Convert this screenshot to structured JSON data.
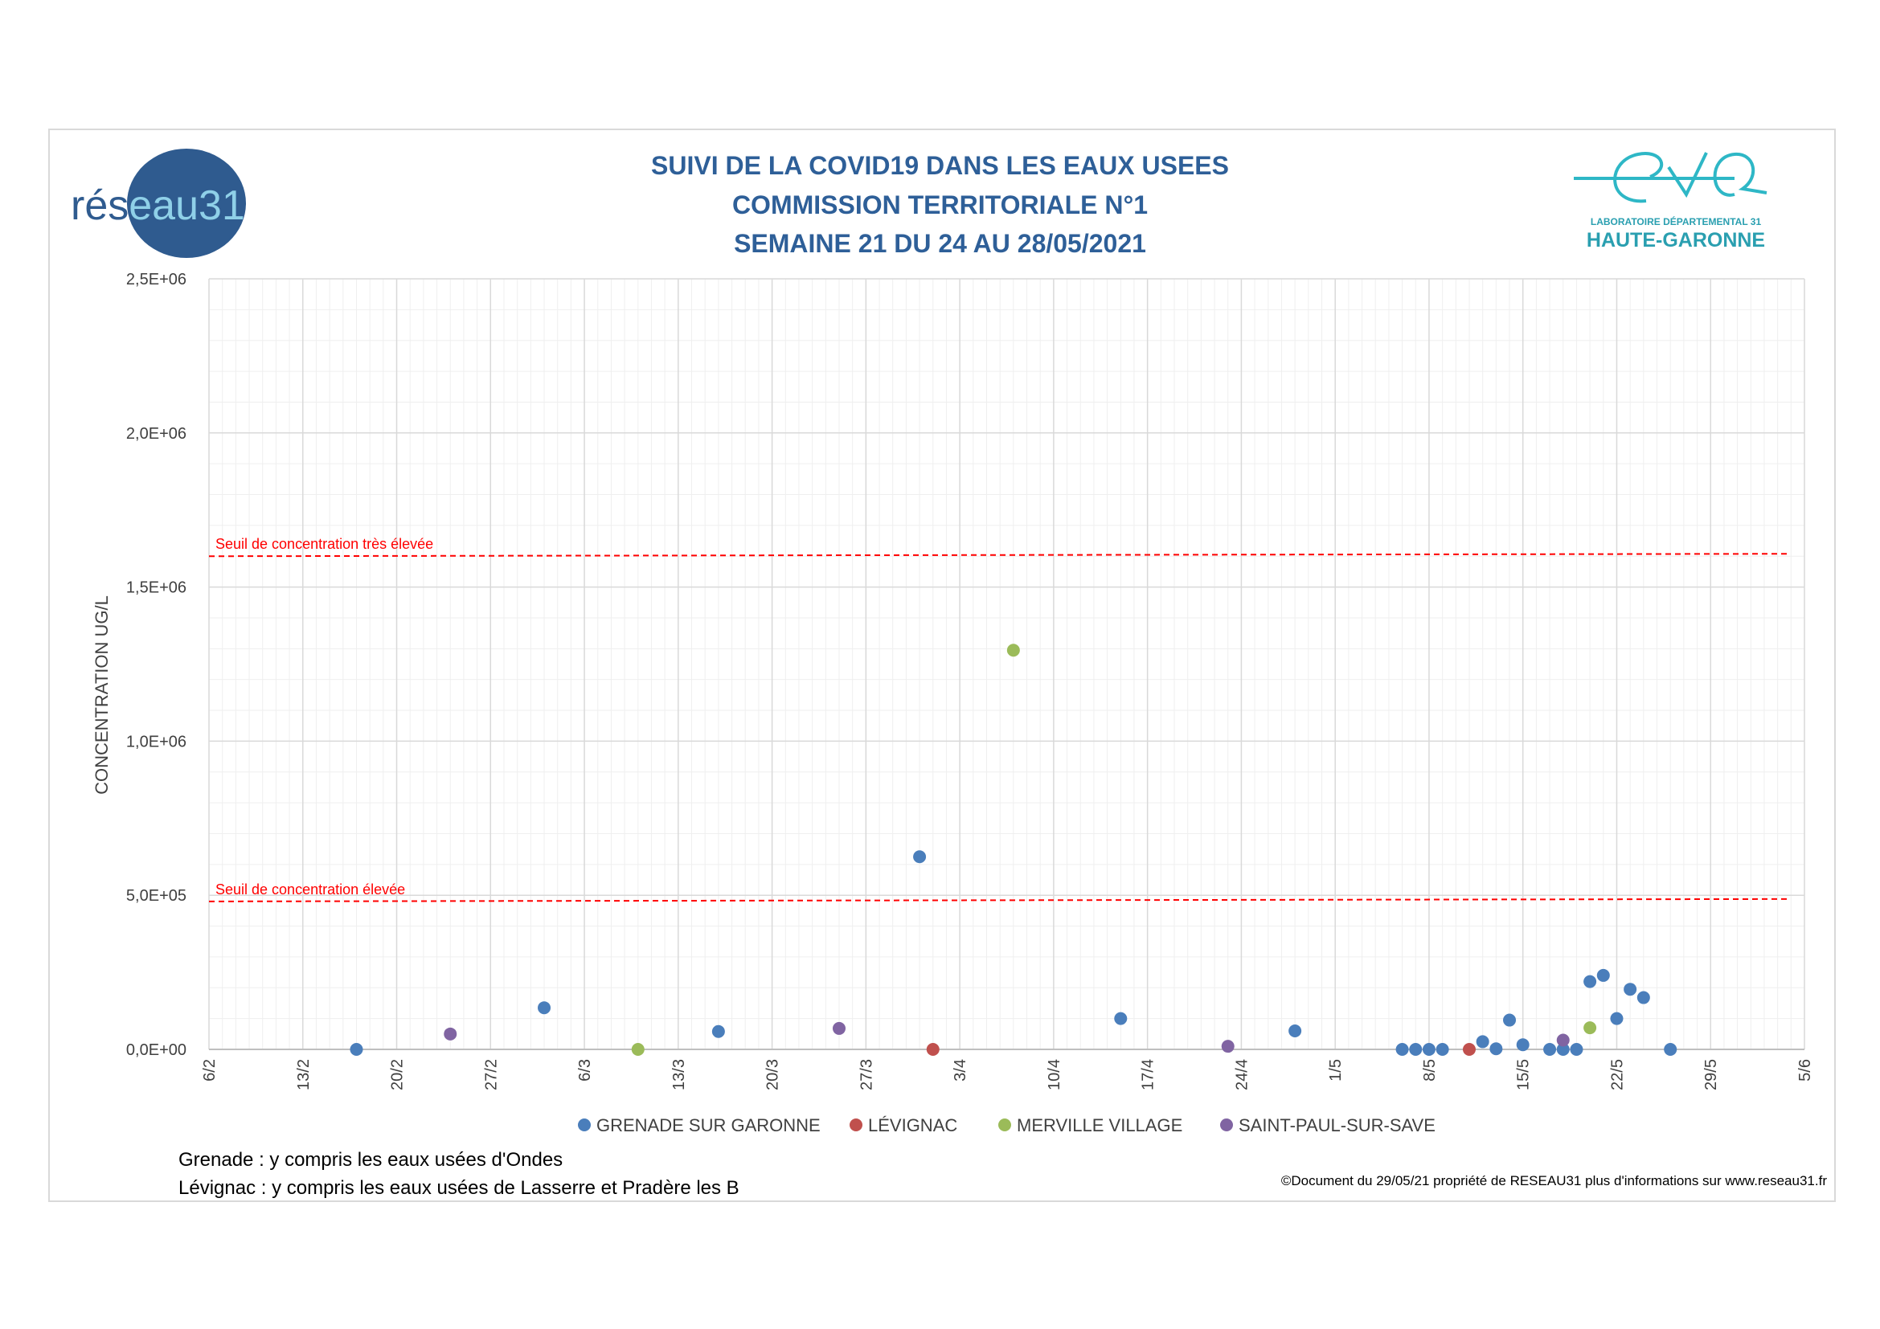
{
  "title_lines": [
    "SUIVI DE LA COVID19 DANS LES EAUX USEES",
    "COMMISSION TERRITORIALE N°1",
    "SEMAINE 21 DU 24 AU 28/05/2021"
  ],
  "logos": {
    "left_prefix": "rés",
    "left_suffix": "eau31",
    "right_line1": "LABORATOIRE DÉPARTEMENTAL 31",
    "right_line2": "HAUTE-GARONNE"
  },
  "notes": [
    "Grenade : y compris les eaux usées d'Ondes",
    "Lévignac : y compris les eaux usées de Lasserre et Pradère les B"
  ],
  "copyright": "©Document du 29/05/21 propriété de RESEAU31 plus d'informations sur www.reseau31.fr",
  "colors": {
    "title": "#2e5f98",
    "threshold": "#ff0000",
    "grid_major": "#d9d9d9",
    "grid_minor": "#efefef"
  },
  "chart_data": {
    "type": "scatter",
    "ylabel": "CONCENTRATION UG/L",
    "xlabel": "",
    "ylim": [
      0,
      2500000
    ],
    "y_ticks": [
      {
        "value": 0,
        "label": "0,0E+00"
      },
      {
        "value": 500000,
        "label": "5,0E+05"
      },
      {
        "value": 1000000,
        "label": "1,0E+06"
      },
      {
        "value": 1500000,
        "label": "1,5E+06"
      },
      {
        "value": 2000000,
        "label": "2,0E+06"
      },
      {
        "value": 2500000,
        "label": "2,5E+06"
      }
    ],
    "xlim": [
      "2021-02-06",
      "2021-06-05"
    ],
    "x_ticks": [
      {
        "date": "2021-02-06",
        "label": "6/2"
      },
      {
        "date": "2021-02-13",
        "label": "13/2"
      },
      {
        "date": "2021-02-20",
        "label": "20/2"
      },
      {
        "date": "2021-02-27",
        "label": "27/2"
      },
      {
        "date": "2021-03-06",
        "label": "6/3"
      },
      {
        "date": "2021-03-13",
        "label": "13/3"
      },
      {
        "date": "2021-03-20",
        "label": "20/3"
      },
      {
        "date": "2021-03-27",
        "label": "27/3"
      },
      {
        "date": "2021-04-03",
        "label": "3/4"
      },
      {
        "date": "2021-04-10",
        "label": "10/4"
      },
      {
        "date": "2021-04-17",
        "label": "17/4"
      },
      {
        "date": "2021-04-24",
        "label": "24/4"
      },
      {
        "date": "2021-05-01",
        "label": "1/5"
      },
      {
        "date": "2021-05-08",
        "label": "8/5"
      },
      {
        "date": "2021-05-15",
        "label": "15/5"
      },
      {
        "date": "2021-05-22",
        "label": "22/5"
      },
      {
        "date": "2021-05-29",
        "label": "29/5"
      },
      {
        "date": "2021-06-05",
        "label": "5/6"
      }
    ],
    "thresholds": [
      {
        "label": "Seuil de concentration très élevée",
        "value": 1600000
      },
      {
        "label": "Seuil de concentration élevée",
        "value": 480000
      }
    ],
    "legend_position": "bottom",
    "grid": true,
    "series": [
      {
        "name": "GRENADE SUR GARONNE",
        "color": "#4a7ebb",
        "points": [
          {
            "x": "2021-02-17",
            "y": 0
          },
          {
            "x": "2021-03-03",
            "y": 135000
          },
          {
            "x": "2021-03-16",
            "y": 58000
          },
          {
            "x": "2021-03-31",
            "y": 625000
          },
          {
            "x": "2021-04-15",
            "y": 100000
          },
          {
            "x": "2021-04-28",
            "y": 60000
          },
          {
            "x": "2021-05-06",
            "y": 0
          },
          {
            "x": "2021-05-07",
            "y": 0
          },
          {
            "x": "2021-05-08",
            "y": 0
          },
          {
            "x": "2021-05-09",
            "y": 0
          },
          {
            "x": "2021-05-12",
            "y": 25000
          },
          {
            "x": "2021-05-13",
            "y": 2000
          },
          {
            "x": "2021-05-14",
            "y": 95000
          },
          {
            "x": "2021-05-15",
            "y": 15000
          },
          {
            "x": "2021-05-17",
            "y": 0
          },
          {
            "x": "2021-05-18",
            "y": 0
          },
          {
            "x": "2021-05-19",
            "y": 0
          },
          {
            "x": "2021-05-20",
            "y": 220000
          },
          {
            "x": "2021-05-21",
            "y": 240000
          },
          {
            "x": "2021-05-22",
            "y": 100000
          },
          {
            "x": "2021-05-23",
            "y": 195000
          },
          {
            "x": "2021-05-24",
            "y": 168000
          },
          {
            "x": "2021-05-26",
            "y": 0
          }
        ]
      },
      {
        "name": "LÉVIGNAC",
        "color": "#c0504d",
        "points": [
          {
            "x": "2021-04-01",
            "y": 0
          },
          {
            "x": "2021-05-11",
            "y": 0
          }
        ]
      },
      {
        "name": "MERVILLE VILLAGE",
        "color": "#9bbb59",
        "points": [
          {
            "x": "2021-03-10",
            "y": 0
          },
          {
            "x": "2021-04-07",
            "y": 1295000
          },
          {
            "x": "2021-05-20",
            "y": 70000
          }
        ]
      },
      {
        "name": "SAINT-PAUL-SUR-SAVE",
        "color": "#8064a2",
        "points": [
          {
            "x": "2021-02-24",
            "y": 50000
          },
          {
            "x": "2021-03-25",
            "y": 68000
          },
          {
            "x": "2021-04-23",
            "y": 10000
          },
          {
            "x": "2021-05-18",
            "y": 30000
          }
        ]
      }
    ]
  }
}
